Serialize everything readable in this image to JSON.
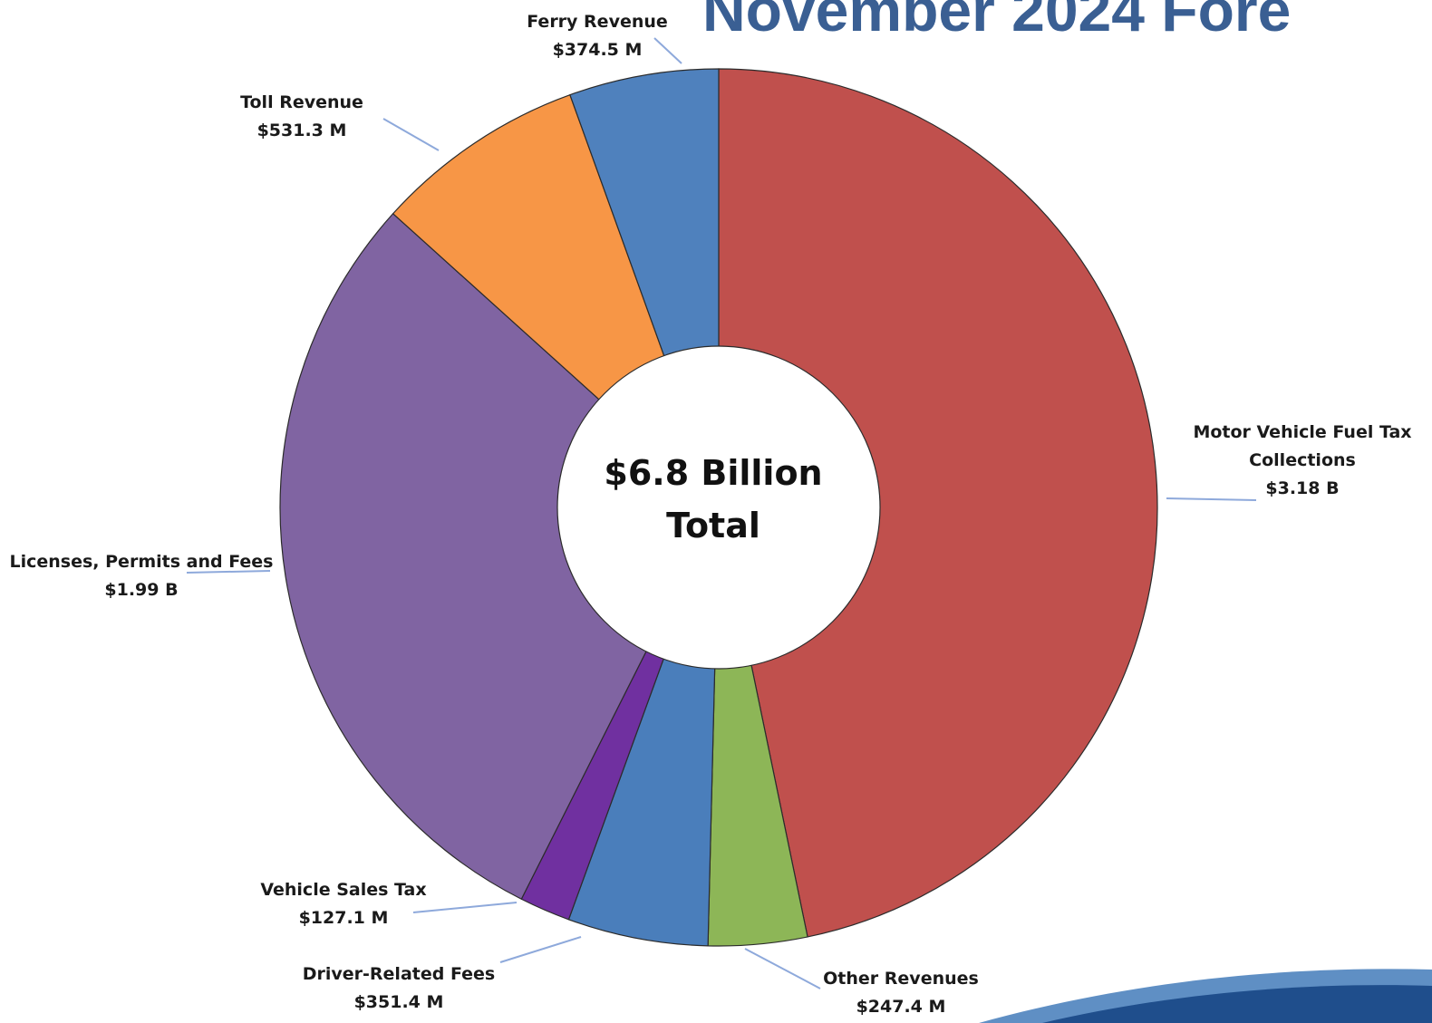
{
  "page": {
    "title": "November 2024 Fore"
  },
  "chart_data": {
    "type": "pie",
    "style": "donut",
    "center_label": [
      "$6.8 Billion",
      "Total"
    ],
    "slices": [
      {
        "name": "Motor Vehicle Fuel Tax Collections",
        "label_lines": [
          "Motor Vehicle Fuel Tax",
          "Collections"
        ],
        "value_label": "$3.18 B",
        "value": 3180,
        "color": "#c0504d"
      },
      {
        "name": "Other Revenues",
        "label_lines": [
          "Other Revenues"
        ],
        "value_label": "$247.4 M",
        "value": 247.4,
        "color": "#8db657"
      },
      {
        "name": "Driver-Related Fees",
        "label_lines": [
          "Driver-Related Fees"
        ],
        "value_label": "$351.4 M",
        "value": 351.4,
        "color": "#4a7ebb"
      },
      {
        "name": "Vehicle Sales Tax",
        "label_lines": [
          "Vehicle Sales Tax"
        ],
        "value_label": "$127.1 M",
        "value": 127.1,
        "color": "#7030a0"
      },
      {
        "name": "Licenses, Permits and Fees",
        "label_lines": [
          "Licenses, Permits and Fees"
        ],
        "value_label": "$1.99 B",
        "value": 1990,
        "color": "#8064a2"
      },
      {
        "name": "Toll Revenue",
        "label_lines": [
          "Toll Revenue"
        ],
        "value_label": "$531.3 M",
        "value": 531.3,
        "color": "#f79646"
      },
      {
        "name": "Ferry Revenue",
        "label_lines": [
          "Ferry Revenue"
        ],
        "value_label": "$374.5 M",
        "value": 374.5,
        "color": "#4f81bd"
      }
    ]
  },
  "footer": {
    "swoosh_colors": [
      "#1f4e8c",
      "#5f8fc4"
    ]
  }
}
